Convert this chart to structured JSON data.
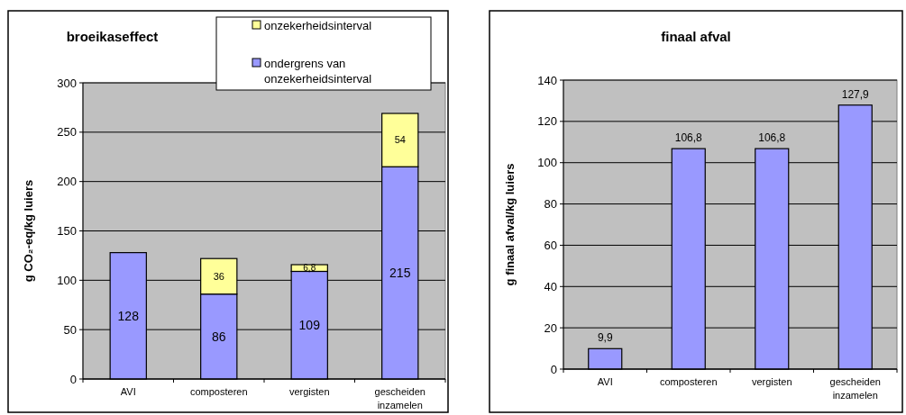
{
  "chart_data": [
    {
      "type": "bar",
      "title": "broeikaseffect",
      "ylabel": "g CO₂-eq/kg luiers",
      "categories": [
        "AVI",
        "composteren",
        "vergisten",
        "gescheiden inzamelen"
      ],
      "stacked": true,
      "ylim": [
        0,
        300
      ],
      "yticks": [
        0,
        50,
        100,
        150,
        200,
        250,
        300
      ],
      "grid": "y",
      "legend": "top right",
      "series": [
        {
          "name": "ondergrens van onzekerheidsinterval",
          "color": "#9999ff",
          "values": [
            128,
            86,
            109,
            215
          ],
          "value_labels": [
            "128",
            "86",
            "109",
            "215"
          ]
        },
        {
          "name": "onzekerheidsinterval",
          "color": "#ffff99",
          "values": [
            null,
            36,
            6.8,
            54
          ],
          "value_labels": [
            null,
            "36",
            "6,8",
            "54"
          ]
        }
      ]
    },
    {
      "type": "bar",
      "title": "finaal afval",
      "ylabel": "g finaal afval/kg luiers",
      "categories": [
        "AVI",
        "composteren",
        "vergisten",
        "gescheiden inzamelen"
      ],
      "ylim": [
        0,
        140
      ],
      "yticks": [
        0,
        20,
        40,
        60,
        80,
        100,
        120,
        140
      ],
      "grid": "y",
      "series": [
        {
          "color": "#9999ff",
          "values": [
            9.9,
            106.8,
            106.8,
            127.9
          ],
          "value_labels": [
            "9,9",
            "106,8",
            "106,8",
            "127,9"
          ]
        }
      ]
    }
  ]
}
